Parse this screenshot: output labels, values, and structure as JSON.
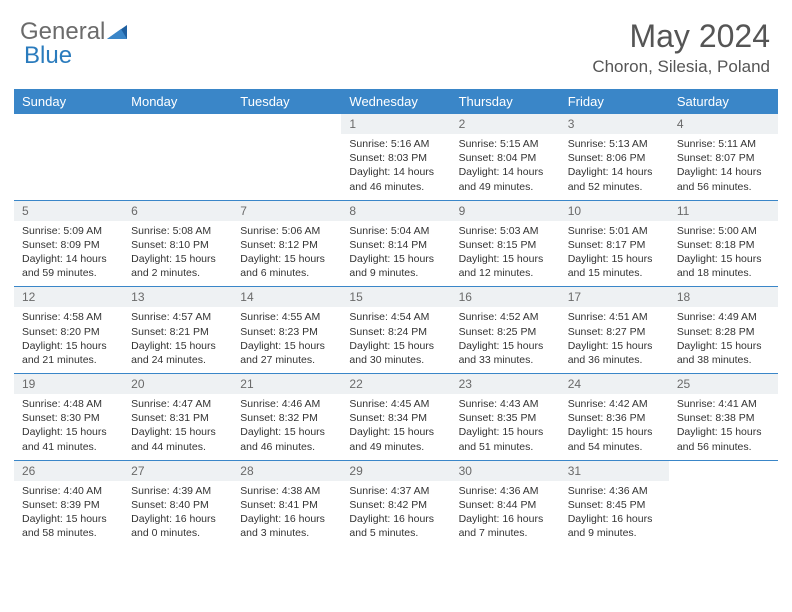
{
  "brand": {
    "part1": "General",
    "part2": "Blue"
  },
  "title": "May 2024",
  "location": "Choron, Silesia, Poland",
  "colors": {
    "header_bg": "#3a86c8",
    "header_text": "#ffffff",
    "daynum_bg": "#eef1f3",
    "daynum_text": "#6a6a6a",
    "body_text": "#333333",
    "rule": "#3a86c8",
    "logo_blue": "#2a7bbd",
    "logo_gray": "#6b6b6b"
  },
  "weekdays": [
    "Sunday",
    "Monday",
    "Tuesday",
    "Wednesday",
    "Thursday",
    "Friday",
    "Saturday"
  ],
  "weeks": [
    [
      {
        "n": "",
        "sr": "",
        "ss": "",
        "dl": ""
      },
      {
        "n": "",
        "sr": "",
        "ss": "",
        "dl": ""
      },
      {
        "n": "",
        "sr": "",
        "ss": "",
        "dl": ""
      },
      {
        "n": "1",
        "sr": "Sunrise: 5:16 AM",
        "ss": "Sunset: 8:03 PM",
        "dl": "Daylight: 14 hours and 46 minutes."
      },
      {
        "n": "2",
        "sr": "Sunrise: 5:15 AM",
        "ss": "Sunset: 8:04 PM",
        "dl": "Daylight: 14 hours and 49 minutes."
      },
      {
        "n": "3",
        "sr": "Sunrise: 5:13 AM",
        "ss": "Sunset: 8:06 PM",
        "dl": "Daylight: 14 hours and 52 minutes."
      },
      {
        "n": "4",
        "sr": "Sunrise: 5:11 AM",
        "ss": "Sunset: 8:07 PM",
        "dl": "Daylight: 14 hours and 56 minutes."
      }
    ],
    [
      {
        "n": "5",
        "sr": "Sunrise: 5:09 AM",
        "ss": "Sunset: 8:09 PM",
        "dl": "Daylight: 14 hours and 59 minutes."
      },
      {
        "n": "6",
        "sr": "Sunrise: 5:08 AM",
        "ss": "Sunset: 8:10 PM",
        "dl": "Daylight: 15 hours and 2 minutes."
      },
      {
        "n": "7",
        "sr": "Sunrise: 5:06 AM",
        "ss": "Sunset: 8:12 PM",
        "dl": "Daylight: 15 hours and 6 minutes."
      },
      {
        "n": "8",
        "sr": "Sunrise: 5:04 AM",
        "ss": "Sunset: 8:14 PM",
        "dl": "Daylight: 15 hours and 9 minutes."
      },
      {
        "n": "9",
        "sr": "Sunrise: 5:03 AM",
        "ss": "Sunset: 8:15 PM",
        "dl": "Daylight: 15 hours and 12 minutes."
      },
      {
        "n": "10",
        "sr": "Sunrise: 5:01 AM",
        "ss": "Sunset: 8:17 PM",
        "dl": "Daylight: 15 hours and 15 minutes."
      },
      {
        "n": "11",
        "sr": "Sunrise: 5:00 AM",
        "ss": "Sunset: 8:18 PM",
        "dl": "Daylight: 15 hours and 18 minutes."
      }
    ],
    [
      {
        "n": "12",
        "sr": "Sunrise: 4:58 AM",
        "ss": "Sunset: 8:20 PM",
        "dl": "Daylight: 15 hours and 21 minutes."
      },
      {
        "n": "13",
        "sr": "Sunrise: 4:57 AM",
        "ss": "Sunset: 8:21 PM",
        "dl": "Daylight: 15 hours and 24 minutes."
      },
      {
        "n": "14",
        "sr": "Sunrise: 4:55 AM",
        "ss": "Sunset: 8:23 PM",
        "dl": "Daylight: 15 hours and 27 minutes."
      },
      {
        "n": "15",
        "sr": "Sunrise: 4:54 AM",
        "ss": "Sunset: 8:24 PM",
        "dl": "Daylight: 15 hours and 30 minutes."
      },
      {
        "n": "16",
        "sr": "Sunrise: 4:52 AM",
        "ss": "Sunset: 8:25 PM",
        "dl": "Daylight: 15 hours and 33 minutes."
      },
      {
        "n": "17",
        "sr": "Sunrise: 4:51 AM",
        "ss": "Sunset: 8:27 PM",
        "dl": "Daylight: 15 hours and 36 minutes."
      },
      {
        "n": "18",
        "sr": "Sunrise: 4:49 AM",
        "ss": "Sunset: 8:28 PM",
        "dl": "Daylight: 15 hours and 38 minutes."
      }
    ],
    [
      {
        "n": "19",
        "sr": "Sunrise: 4:48 AM",
        "ss": "Sunset: 8:30 PM",
        "dl": "Daylight: 15 hours and 41 minutes."
      },
      {
        "n": "20",
        "sr": "Sunrise: 4:47 AM",
        "ss": "Sunset: 8:31 PM",
        "dl": "Daylight: 15 hours and 44 minutes."
      },
      {
        "n": "21",
        "sr": "Sunrise: 4:46 AM",
        "ss": "Sunset: 8:32 PM",
        "dl": "Daylight: 15 hours and 46 minutes."
      },
      {
        "n": "22",
        "sr": "Sunrise: 4:45 AM",
        "ss": "Sunset: 8:34 PM",
        "dl": "Daylight: 15 hours and 49 minutes."
      },
      {
        "n": "23",
        "sr": "Sunrise: 4:43 AM",
        "ss": "Sunset: 8:35 PM",
        "dl": "Daylight: 15 hours and 51 minutes."
      },
      {
        "n": "24",
        "sr": "Sunrise: 4:42 AM",
        "ss": "Sunset: 8:36 PM",
        "dl": "Daylight: 15 hours and 54 minutes."
      },
      {
        "n": "25",
        "sr": "Sunrise: 4:41 AM",
        "ss": "Sunset: 8:38 PM",
        "dl": "Daylight: 15 hours and 56 minutes."
      }
    ],
    [
      {
        "n": "26",
        "sr": "Sunrise: 4:40 AM",
        "ss": "Sunset: 8:39 PM",
        "dl": "Daylight: 15 hours and 58 minutes."
      },
      {
        "n": "27",
        "sr": "Sunrise: 4:39 AM",
        "ss": "Sunset: 8:40 PM",
        "dl": "Daylight: 16 hours and 0 minutes."
      },
      {
        "n": "28",
        "sr": "Sunrise: 4:38 AM",
        "ss": "Sunset: 8:41 PM",
        "dl": "Daylight: 16 hours and 3 minutes."
      },
      {
        "n": "29",
        "sr": "Sunrise: 4:37 AM",
        "ss": "Sunset: 8:42 PM",
        "dl": "Daylight: 16 hours and 5 minutes."
      },
      {
        "n": "30",
        "sr": "Sunrise: 4:36 AM",
        "ss": "Sunset: 8:44 PM",
        "dl": "Daylight: 16 hours and 7 minutes."
      },
      {
        "n": "31",
        "sr": "Sunrise: 4:36 AM",
        "ss": "Sunset: 8:45 PM",
        "dl": "Daylight: 16 hours and 9 minutes."
      },
      {
        "n": "",
        "sr": "",
        "ss": "",
        "dl": ""
      }
    ]
  ]
}
